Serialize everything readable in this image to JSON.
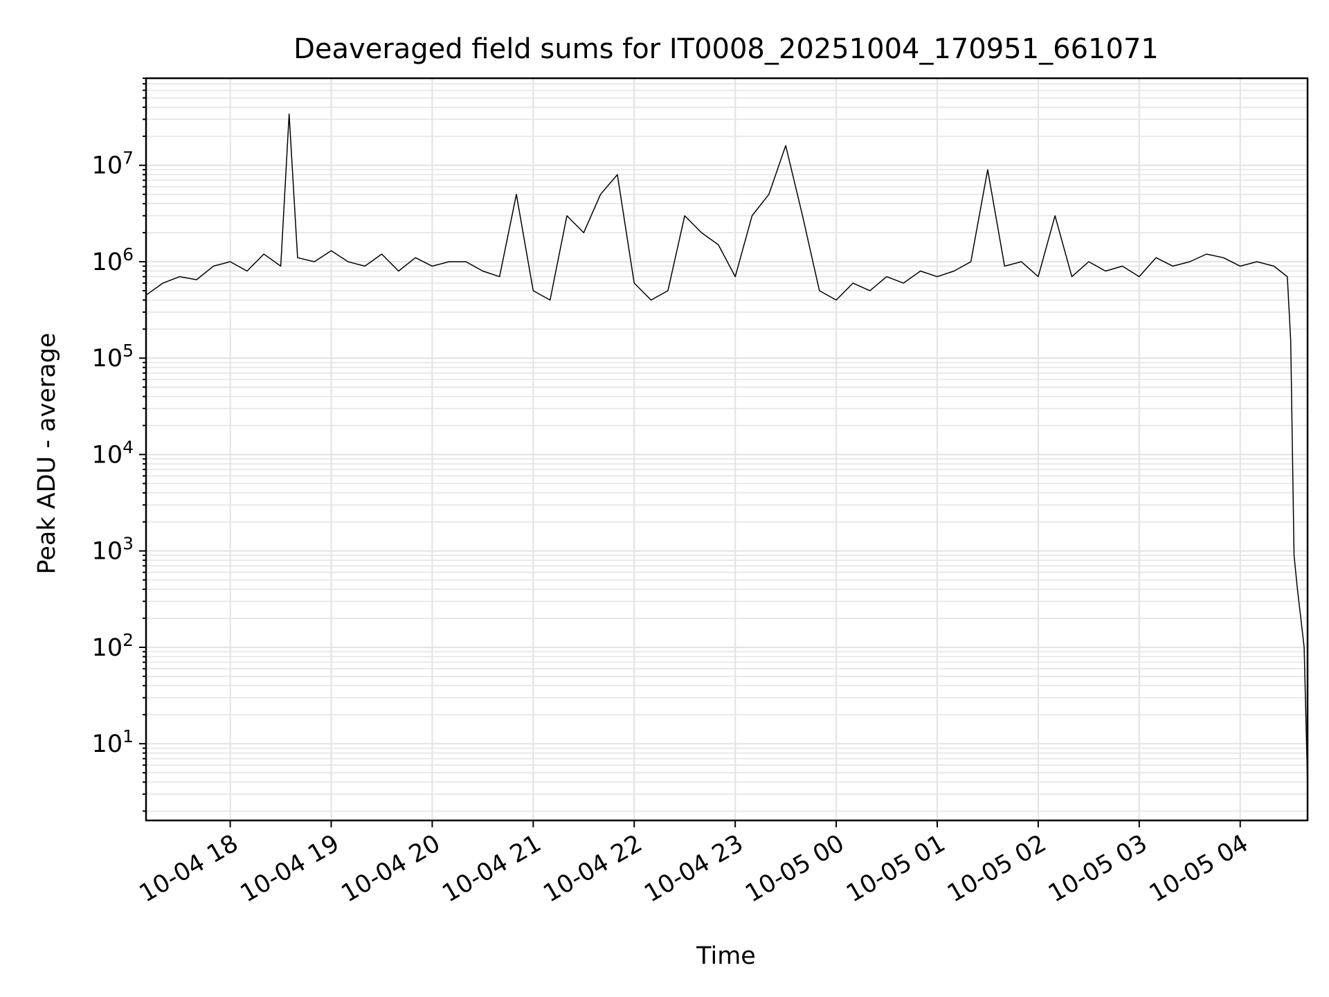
{
  "chart_data": {
    "type": "line",
    "title": "Deaveraged field sums for IT0008_20251004_170951_661071",
    "xlabel": "Time",
    "ylabel": "Peak ADU - average",
    "yscale": "log",
    "ylim": [
      1.6,
      80000000
    ],
    "xlim": [
      "2025-10-04 17:10",
      "2025-10-05 04:40"
    ],
    "grid": true,
    "series_color": "#000000",
    "x_ticks": [
      "10-04 18",
      "10-04 19",
      "10-04 20",
      "10-04 21",
      "10-04 22",
      "10-04 23",
      "10-05 00",
      "10-05 01",
      "10-05 02",
      "10-05 03",
      "10-05 04"
    ],
    "y_ticks": [
      {
        "value": 10,
        "base": "10",
        "exp": "1"
      },
      {
        "value": 100,
        "base": "10",
        "exp": "2"
      },
      {
        "value": 1000,
        "base": "10",
        "exp": "3"
      },
      {
        "value": 10000,
        "base": "10",
        "exp": "4"
      },
      {
        "value": 100000,
        "base": "10",
        "exp": "5"
      },
      {
        "value": 1000000,
        "base": "10",
        "exp": "6"
      },
      {
        "value": 10000000,
        "base": "10",
        "exp": "7"
      }
    ],
    "series": [
      {
        "x": [
          "2025-10-04 17:10",
          "2025-10-04 17:20",
          "2025-10-04 17:30",
          "2025-10-04 17:40",
          "2025-10-04 17:50",
          "2025-10-04 18:00",
          "2025-10-04 18:10",
          "2025-10-04 18:20",
          "2025-10-04 18:30",
          "2025-10-04 18:35",
          "2025-10-04 18:40",
          "2025-10-04 18:50",
          "2025-10-04 19:00",
          "2025-10-04 19:10",
          "2025-10-04 19:20",
          "2025-10-04 19:30",
          "2025-10-04 19:40",
          "2025-10-04 19:50",
          "2025-10-04 20:00",
          "2025-10-04 20:10",
          "2025-10-04 20:20",
          "2025-10-04 20:30",
          "2025-10-04 20:40",
          "2025-10-04 20:50",
          "2025-10-04 21:00",
          "2025-10-04 21:10",
          "2025-10-04 21:20",
          "2025-10-04 21:30",
          "2025-10-04 21:40",
          "2025-10-04 21:50",
          "2025-10-04 22:00",
          "2025-10-04 22:10",
          "2025-10-04 22:20",
          "2025-10-04 22:30",
          "2025-10-04 22:40",
          "2025-10-04 22:50",
          "2025-10-04 23:00",
          "2025-10-04 23:10",
          "2025-10-04 23:20",
          "2025-10-04 23:30",
          "2025-10-04 23:40",
          "2025-10-04 23:50",
          "2025-10-05 00:00",
          "2025-10-05 00:10",
          "2025-10-05 00:20",
          "2025-10-05 00:30",
          "2025-10-05 00:40",
          "2025-10-05 00:50",
          "2025-10-05 01:00",
          "2025-10-05 01:10",
          "2025-10-05 01:20",
          "2025-10-05 01:30",
          "2025-10-05 01:40",
          "2025-10-05 01:50",
          "2025-10-05 02:00",
          "2025-10-05 02:10",
          "2025-10-05 02:20",
          "2025-10-05 02:30",
          "2025-10-05 02:40",
          "2025-10-05 02:50",
          "2025-10-05 03:00",
          "2025-10-05 03:10",
          "2025-10-05 03:20",
          "2025-10-05 03:30",
          "2025-10-05 03:40",
          "2025-10-05 03:50",
          "2025-10-05 04:00",
          "2025-10-05 04:10",
          "2025-10-05 04:20",
          "2025-10-05 04:28",
          "2025-10-05 04:30",
          "2025-10-05 04:32",
          "2025-10-05 04:34",
          "2025-10-05 04:36",
          "2025-10-05 04:38",
          "2025-10-05 04:40"
        ],
        "y": [
          450000,
          600000,
          700000,
          650000,
          900000,
          1000000,
          800000,
          1200000,
          900000,
          34000000,
          1100000,
          1000000,
          1300000,
          1000000,
          900000,
          1200000,
          800000,
          1100000,
          900000,
          1000000,
          1000000,
          800000,
          700000,
          5000000,
          500000,
          400000,
          3000000,
          2000000,
          5000000,
          8000000,
          600000,
          400000,
          500000,
          3000000,
          2000000,
          1500000,
          700000,
          3000000,
          5000000,
          16000000,
          3000000,
          500000,
          400000,
          600000,
          500000,
          700000,
          600000,
          800000,
          700000,
          800000,
          1000000,
          9000000,
          900000,
          1000000,
          700000,
          3000000,
          700000,
          1000000,
          800000,
          900000,
          700000,
          1100000,
          900000,
          1000000,
          1200000,
          1100000,
          900000,
          1000000,
          900000,
          700000,
          150000,
          900,
          400,
          200,
          100,
          3.8
        ]
      }
    ]
  }
}
